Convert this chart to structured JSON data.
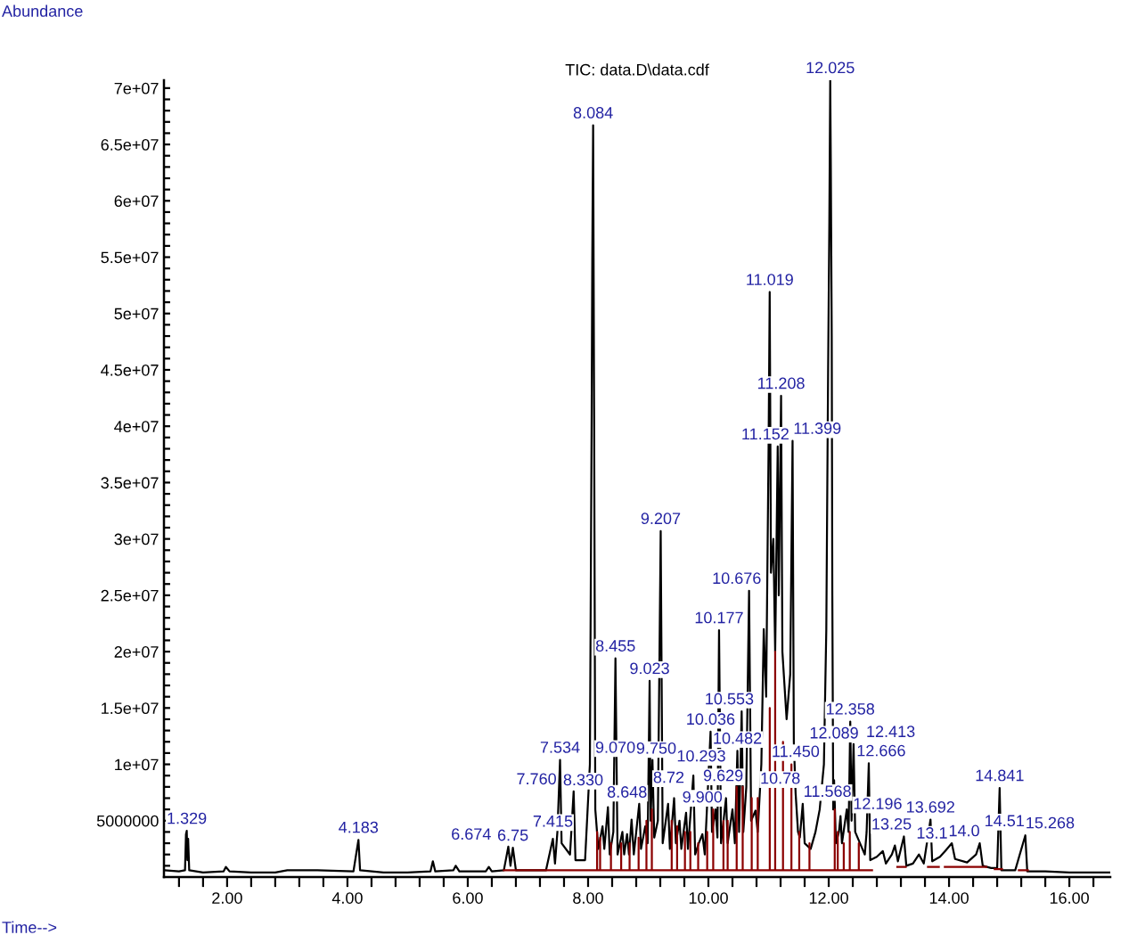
{
  "chart_data": {
    "type": "line",
    "title": "TIC: data.D\\data.cdf",
    "xlabel": "Time-->",
    "ylabel": "Abundance",
    "series": [
      {
        "color": "#000000",
        "x": [
          0.96,
          1.2,
          1.3,
          1.316,
          1.329,
          1.34,
          1.352,
          1.37,
          1.6,
          1.94,
          1.98,
          2.04,
          2.4,
          2.8,
          3.0,
          3.5,
          4.1,
          4.183,
          4.21,
          4.6,
          5.0,
          5.38,
          5.42,
          5.46,
          5.76,
          5.8,
          5.86,
          6.3,
          6.35,
          6.4,
          6.6,
          6.674,
          6.71,
          6.75,
          6.8,
          7.3,
          7.415,
          7.45,
          7.49,
          7.534,
          7.56,
          7.7,
          7.76,
          7.79,
          7.95,
          8.03,
          8.06,
          8.07,
          8.084,
          8.1,
          8.12,
          8.17,
          8.24,
          8.27,
          8.33,
          8.36,
          8.42,
          8.455,
          8.49,
          8.57,
          8.6,
          8.648,
          8.68,
          8.723,
          8.76,
          8.85,
          8.88,
          8.95,
          8.99,
          9.023,
          9.04,
          9.07,
          9.1,
          9.16,
          9.207,
          9.24,
          9.33,
          9.36,
          9.43,
          9.46,
          9.52,
          9.55,
          9.629,
          9.66,
          9.75,
          9.78,
          9.84,
          9.9,
          9.94,
          10.036,
          10.06,
          10.12,
          10.15,
          10.177,
          10.21,
          10.293,
          10.32,
          10.4,
          10.44,
          10.482,
          10.51,
          10.553,
          10.58,
          10.63,
          10.676,
          10.71,
          10.783,
          10.82,
          10.88,
          10.92,
          10.96,
          11.0,
          11.019,
          11.04,
          11.08,
          11.11,
          11.152,
          11.17,
          11.208,
          11.23,
          11.3,
          11.36,
          11.399,
          11.42,
          11.45,
          11.49,
          11.52,
          11.568,
          11.6,
          11.7,
          11.78,
          11.85,
          11.92,
          11.96,
          11.99,
          12.01,
          12.025,
          12.035,
          12.05,
          12.06,
          12.075,
          12.089,
          12.12,
          12.17,
          12.196,
          12.22,
          12.3,
          12.33,
          12.358,
          12.38,
          12.413,
          12.44,
          12.52,
          12.6,
          12.63,
          12.666,
          12.69,
          12.8,
          12.9,
          12.95,
          13.05,
          13.1,
          13.15,
          13.25,
          13.29,
          13.4,
          13.5,
          13.58,
          13.692,
          13.72,
          13.85,
          13.95,
          14.046,
          14.1,
          14.3,
          14.45,
          14.51,
          14.56,
          14.7,
          14.8,
          14.841,
          14.87,
          15.1,
          15.268,
          15.3,
          15.6,
          16.0,
          16.67
        ],
        "values": [
          600000.0,
          500000.0,
          600000.0,
          3800000.0,
          4100000.0,
          1500000.0,
          3400000.0,
          600000.0,
          400000.0,
          500000.0,
          900000.0,
          500000.0,
          400000.0,
          400000.0,
          600000.0,
          600000.0,
          500000.0,
          3300000.0,
          600000.0,
          400000.0,
          400000.0,
          500000.0,
          1400000.0,
          500000.0,
          600000.0,
          1000000.0,
          500000.0,
          500000.0,
          900000.0,
          500000.0,
          600000.0,
          2700000.0,
          1000000.0,
          2600000.0,
          600000.0,
          600000.0,
          3400000.0,
          1200000.0,
          4000000.0,
          10400000.0,
          3000000.0,
          2000000.0,
          7600000.0,
          1500000.0,
          1500000.0,
          10000000.0,
          41600000.0,
          55000000.0,
          66700000.0,
          41600000.0,
          6000000.0,
          2500000.0,
          4500000.0,
          2500000.0,
          6200000.0,
          2000000.0,
          4000000.0,
          19400000.0,
          2000000.0,
          4000000.0,
          2000000.0,
          3800000.0,
          2000000.0,
          5100000.0,
          2000000.0,
          6500000.0,
          2500000.0,
          4500000.0,
          3000000.0,
          17400000.0,
          5000000.0,
          10400000.0,
          3500000.0,
          5000000.0,
          30700000.0,
          3000000.0,
          6500000.0,
          2500000.0,
          7000000.0,
          3000000.0,
          5000000.0,
          2500000.0,
          5700000.0,
          2500000.0,
          9000000.0,
          2000000.0,
          3000000.0,
          3800000.0,
          2000000.0,
          12900000.0,
          4000000.0,
          6000000.0,
          3500000.0,
          21900000.0,
          3000000.0,
          7000000.0,
          3000000.0,
          6000000.0,
          3000000.0,
          11200000.0,
          4000000.0,
          14700000.0,
          4000000.0,
          8000000.0,
          25400000.0,
          5000000.0,
          5900000.0,
          4000000.0,
          10000000.0,
          22000000.0,
          16000000.0,
          38000000.0,
          51900000.0,
          27000000.0,
          30000000.0,
          20000000.0,
          38200000.0,
          25000000.0,
          42700000.0,
          20000000.0,
          14000000.0,
          18000000.0,
          38700000.0,
          12000000.0,
          7400000.0,
          4000000.0,
          3500000.0,
          6500000.0,
          3000000.0,
          2500000.0,
          4000000.0,
          6000000.0,
          10000000.0,
          22000000.0,
          45000000.0,
          58000000.0,
          70700000.0,
          63000000.0,
          48000000.0,
          25000000.0,
          6000000.0,
          8600000.0,
          3000000.0,
          4000000.0,
          5400000.0,
          3000000.0,
          6000000.0,
          4000000.0,
          13800000.0,
          5000000.0,
          11800000.0,
          4000000.0,
          3000000.0,
          2000000.0,
          4000000.0,
          10100000.0,
          1500000.0,
          1800000.0,
          2300000.0,
          1200000.0,
          2000000.0,
          2800000.0,
          1400000.0,
          3600000.0,
          1000000.0,
          1200000.0,
          2000000.0,
          1200000.0,
          5100000.0,
          1400000.0,
          1800000.0,
          2400000.0,
          3000000.0,
          1600000.0,
          1300000.0,
          2000000.0,
          3000000.0,
          1000000.0,
          800000.0,
          800000.0,
          7900000.0,
          600000.0,
          600000.0,
          3700000.0,
          500000.0,
          500000.0,
          400000.0,
          400000.0
        ]
      },
      {
        "color": "#8b0000",
        "x": [
          6.6,
          8.15,
          8.15,
          8.15,
          8.2,
          8.2,
          8.2,
          8.38,
          8.38,
          8.38,
          8.55,
          8.55,
          8.55,
          8.69,
          8.69,
          8.69,
          8.84,
          8.84,
          8.84,
          8.97,
          8.97,
          8.97,
          9.06,
          9.06,
          9.06,
          9.39,
          9.39,
          9.39,
          9.48,
          9.48,
          9.48,
          9.61,
          9.61,
          9.61,
          9.7,
          9.7,
          9.7,
          9.83,
          9.83,
          9.83,
          9.98,
          9.98,
          9.98,
          10.08,
          10.08,
          10.08,
          10.25,
          10.25,
          10.25,
          10.32,
          10.32,
          10.32,
          10.47,
          10.47,
          10.47,
          10.57,
          10.57,
          10.57,
          10.72,
          10.72,
          10.72,
          10.82,
          10.82,
          10.82,
          11.02,
          11.02,
          11.02,
          11.11,
          11.11,
          11.11,
          11.24,
          11.24,
          11.24,
          11.38,
          11.38,
          11.38,
          11.51,
          11.51,
          11.51,
          11.68,
          11.68,
          11.68,
          12.1,
          12.1,
          12.1,
          12.15,
          12.15,
          12.15,
          12.25,
          12.25,
          12.25,
          12.35,
          12.35,
          12.35,
          12.5,
          12.5,
          12.5,
          12.72,
          12.9,
          13.14,
          13.28,
          13.4,
          13.65,
          13.83,
          13.88,
          13.93,
          14.62,
          14.7,
          14.76,
          14.88,
          15.0,
          15.16,
          15.31
        ],
        "values": [
          600000.0,
          600000.0,
          4000000.0,
          600000.0,
          600000.0,
          3500000.0,
          600000.0,
          600000.0,
          3000000.0,
          600000.0,
          600000.0,
          3000000.0,
          600000.0,
          600000.0,
          3000000.0,
          600000.0,
          600000.0,
          3500000.0,
          600000.0,
          600000.0,
          5000000.0,
          600000.0,
          600000.0,
          6000000.0,
          600000.0,
          600000.0,
          5000000.0,
          600000.0,
          600000.0,
          4500000.0,
          600000.0,
          600000.0,
          4000000.0,
          600000.0,
          600000.0,
          4000000.0,
          600000.0,
          600000.0,
          3000000.0,
          600000.0,
          600000.0,
          4000000.0,
          600000.0,
          600000.0,
          6000000.0,
          600000.0,
          600000.0,
          5000000.0,
          600000.0,
          600000.0,
          5000000.0,
          600000.0,
          600000.0,
          8000000.0,
          600000.0,
          600000.0,
          8000000.0,
          600000.0,
          600000.0,
          7000000.0,
          600000.0,
          600000.0,
          7000000.0,
          600000.0,
          600000.0,
          15000000.0,
          600000.0,
          600000.0,
          20000000.0,
          600000.0,
          600000.0,
          12000000.0,
          600000.0,
          600000.0,
          10000000.0,
          600000.0,
          600000.0,
          4000000.0,
          600000.0,
          600000.0,
          3000000.0,
          600000.0,
          600000.0,
          6000000.0,
          600000.0,
          600000.0,
          4000000.0,
          600000.0,
          600000.0,
          3000000.0,
          600000.0,
          600000.0,
          4000000.0,
          600000.0,
          600000.0,
          3000000.0,
          600000.0,
          600000.0,
          null,
          900000.0,
          900000.0,
          null,
          900000.0,
          900000.0,
          null,
          900000.0,
          900000.0,
          null,
          700000.0,
          700000.0,
          null,
          600000.0,
          600000.0
        ]
      }
    ],
    "xlim": [
      0.95,
      16.68
    ],
    "ylim": [
      0,
      70700000
    ],
    "xticks": [
      {
        "value": 1.2,
        "label": null
      },
      {
        "value": 1.6,
        "label": null
      },
      {
        "value": 2,
        "label": "2.00"
      },
      {
        "value": 2.4,
        "label": null
      },
      {
        "value": 2.8,
        "label": null
      },
      {
        "value": 3.2,
        "label": null
      },
      {
        "value": 3.6,
        "label": null
      },
      {
        "value": 4,
        "label": "4.00"
      },
      {
        "value": 4.4,
        "label": null
      },
      {
        "value": 4.8,
        "label": null
      },
      {
        "value": 5.2,
        "label": null
      },
      {
        "value": 5.6,
        "label": null
      },
      {
        "value": 6,
        "label": "6.00"
      },
      {
        "value": 6.4,
        "label": null
      },
      {
        "value": 6.8,
        "label": null
      },
      {
        "value": 7.2,
        "label": null
      },
      {
        "value": 7.6,
        "label": null
      },
      {
        "value": 8,
        "label": "8.00"
      },
      {
        "value": 8.4,
        "label": null
      },
      {
        "value": 8.8,
        "label": null
      },
      {
        "value": 9.2,
        "label": null
      },
      {
        "value": 9.6,
        "label": null
      },
      {
        "value": 10,
        "label": "10.00"
      },
      {
        "value": 10.4,
        "label": null
      },
      {
        "value": 10.8,
        "label": null
      },
      {
        "value": 11.2,
        "label": null
      },
      {
        "value": 11.6,
        "label": null
      },
      {
        "value": 12,
        "label": "12.00"
      },
      {
        "value": 12.4,
        "label": null
      },
      {
        "value": 12.8,
        "label": null
      },
      {
        "value": 13.2,
        "label": null
      },
      {
        "value": 13.6,
        "label": null
      },
      {
        "value": 14,
        "label": "14.00"
      },
      {
        "value": 14.4,
        "label": null
      },
      {
        "value": 14.8,
        "label": null
      },
      {
        "value": 15.2,
        "label": null
      },
      {
        "value": 15.6,
        "label": null
      },
      {
        "value": 16,
        "label": "16.00"
      },
      {
        "value": 16.4,
        "label": null
      }
    ],
    "yticks": [
      {
        "value": 1000000,
        "label": null
      },
      {
        "value": 2000000,
        "label": null
      },
      {
        "value": 3000000,
        "label": null
      },
      {
        "value": 4000000,
        "label": null
      },
      5000000,
      {
        "value": 6000000,
        "label": null
      },
      {
        "value": 7000000,
        "label": null
      },
      {
        "value": 8000000,
        "label": null
      },
      {
        "value": 9000000,
        "label": null
      },
      {
        "value": 10000000,
        "label": "1e+07"
      },
      {
        "value": 11000000,
        "label": null
      },
      {
        "value": 12000000,
        "label": null
      },
      {
        "value": 13000000,
        "label": null
      },
      {
        "value": 14000000,
        "label": null
      },
      {
        "value": 15000000,
        "label": "1.5e+07"
      },
      {
        "value": 16000000,
        "label": null
      },
      {
        "value": 17000000,
        "label": null
      },
      {
        "value": 18000000,
        "label": null
      },
      {
        "value": 19000000,
        "label": null
      },
      {
        "value": 20000000,
        "label": "2e+07"
      },
      {
        "value": 21000000,
        "label": null
      },
      {
        "value": 22000000,
        "label": null
      },
      {
        "value": 23000000,
        "label": null
      },
      {
        "value": 24000000,
        "label": null
      },
      {
        "value": 25000000,
        "label": "2.5e+07"
      },
      {
        "value": 26000000,
        "label": null
      },
      {
        "value": 27000000,
        "label": null
      },
      {
        "value": 28000000,
        "label": null
      },
      {
        "value": 29000000,
        "label": null
      },
      {
        "value": 30000000,
        "label": "3e+07"
      },
      {
        "value": 31000000,
        "label": null
      },
      {
        "value": 32000000,
        "label": null
      },
      {
        "value": 33000000,
        "label": null
      },
      {
        "value": 34000000,
        "label": null
      },
      {
        "value": 35000000,
        "label": "3.5e+07"
      },
      {
        "value": 36000000,
        "label": null
      },
      {
        "value": 37000000,
        "label": null
      },
      {
        "value": 38000000,
        "label": null
      },
      {
        "value": 39000000,
        "label": null
      },
      {
        "value": 40000000,
        "label": "4e+07"
      },
      {
        "value": 41000000,
        "label": null
      },
      {
        "value": 42000000,
        "label": null
      },
      {
        "value": 43000000,
        "label": null
      },
      {
        "value": 44000000,
        "label": null
      },
      {
        "value": 45000000,
        "label": "4.5e+07"
      },
      {
        "value": 46000000,
        "label": null
      },
      {
        "value": 47000000,
        "label": null
      },
      {
        "value": 48000000,
        "label": null
      },
      {
        "value": 49000000,
        "label": null
      },
      {
        "value": 50000000,
        "label": "5e+07"
      },
      {
        "value": 51000000,
        "label": null
      },
      {
        "value": 52000000,
        "label": null
      },
      {
        "value": 53000000,
        "label": null
      },
      {
        "value": 54000000,
        "label": null
      },
      {
        "value": 55000000,
        "label": "5.5e+07"
      },
      {
        "value": 56000000,
        "label": null
      },
      {
        "value": 57000000,
        "label": null
      },
      {
        "value": 58000000,
        "label": null
      },
      {
        "value": 59000000,
        "label": null
      },
      {
        "value": 60000000,
        "label": "6e+07"
      },
      {
        "value": 61000000,
        "label": null
      },
      {
        "value": 62000000,
        "label": null
      },
      {
        "value": 63000000,
        "label": null
      },
      {
        "value": 64000000,
        "label": null
      },
      {
        "value": 65000000,
        "label": "6.5e+07"
      },
      {
        "value": 66000000,
        "label": null
      },
      {
        "value": 67000000,
        "label": null
      },
      {
        "value": 68000000,
        "label": null
      },
      {
        "value": 69000000,
        "label": null
      },
      {
        "value": 70000000,
        "label": "7e+07"
      }
    ],
    "annotations": [
      {
        "text": "1.329",
        "x": 1.329,
        "y": 4100000.0
      },
      {
        "text": "4.183",
        "x": 4.183,
        "y": 3300000.0
      },
      {
        "text": "6.674",
        "x": 6.674,
        "y": 2700000.0
      },
      {
        "text": "6.75",
        "x": 6.75,
        "y": 2600000.0
      },
      {
        "text": "7.415",
        "x": 7.415,
        "y": 3400000.0
      },
      {
        "text": "7.534",
        "x": 7.534,
        "y": 10400000.0
      },
      {
        "text": "7.760",
        "x": 7.76,
        "y": 7600000.0
      },
      {
        "text": "8.084",
        "x": 8.084,
        "y": 66700000.0
      },
      {
        "text": "8.330",
        "x": 8.33,
        "y": 6200000.0
      },
      {
        "text": "8.455",
        "x": 8.455,
        "y": 19400000.0
      },
      {
        "text": "8.648",
        "x": 8.648,
        "y": 3800000.0
      },
      {
        "text": "8.72",
        "x": 8.723,
        "y": 5100000.0
      },
      {
        "text": "9.023",
        "x": 9.023,
        "y": 17400000.0
      },
      {
        "text": "9.070",
        "x": 9.07,
        "y": 10400000.0
      },
      {
        "text": "9.207",
        "x": 9.207,
        "y": 30700000.0
      },
      {
        "text": "9.629",
        "x": 9.629,
        "y": 5700000.0
      },
      {
        "text": "9.750",
        "x": 9.75,
        "y": 9000000.0
      },
      {
        "text": "9.900",
        "x": 9.9,
        "y": 3800000.0
      },
      {
        "text": "10.036",
        "x": 10.036,
        "y": 12900000.0
      },
      {
        "text": "10.177",
        "x": 10.177,
        "y": 21900000.0
      },
      {
        "text": "10.293",
        "x": 10.293,
        "y": 7000000.0
      },
      {
        "text": "10.482",
        "x": 10.482,
        "y": 11200000.0
      },
      {
        "text": "10.553",
        "x": 10.553,
        "y": 14700000.0
      },
      {
        "text": "10.676",
        "x": 10.676,
        "y": 25400000.0
      },
      {
        "text": "10.78",
        "x": 10.783,
        "y": 5900000.0
      },
      {
        "text": "11.019",
        "x": 11.019,
        "y": 51900000.0
      },
      {
        "text": "11.152",
        "x": 11.152,
        "y": 38200000.0
      },
      {
        "text": "11.208",
        "x": 11.208,
        "y": 42700000.0
      },
      {
        "text": "11.399",
        "x": 11.399,
        "y": 38700000.0
      },
      {
        "text": "11.450",
        "x": 11.45,
        "y": 7400000.0
      },
      {
        "text": "11.568",
        "x": 11.568,
        "y": 6500000.0
      },
      {
        "text": "12.025",
        "x": 12.025,
        "y": 70700000.0
      },
      {
        "text": "12.089",
        "x": 12.089,
        "y": 8600000.0
      },
      {
        "text": "12.196",
        "x": 12.196,
        "y": 5400000.0
      },
      {
        "text": "12.358",
        "x": 12.358,
        "y": 13800000.0
      },
      {
        "text": "12.413",
        "x": 12.413,
        "y": 11800000.0
      },
      {
        "text": "12.666",
        "x": 12.666,
        "y": 10100000.0
      },
      {
        "text": "13.1",
        "x": 13.1,
        "y": 2800000.0
      },
      {
        "text": "13.25",
        "x": 13.25,
        "y": 3600000.0
      },
      {
        "text": "13.692",
        "x": 13.692,
        "y": 5100000.0
      },
      {
        "text": "14.0",
        "x": 14.046,
        "y": 3000000.0
      },
      {
        "text": "14.51",
        "x": 14.51,
        "y": 3000000.0
      },
      {
        "text": "14.841",
        "x": 14.841,
        "y": 7900000.0
      },
      {
        "text": "15.268",
        "x": 15.268,
        "y": 3700000.0
      }
    ]
  }
}
